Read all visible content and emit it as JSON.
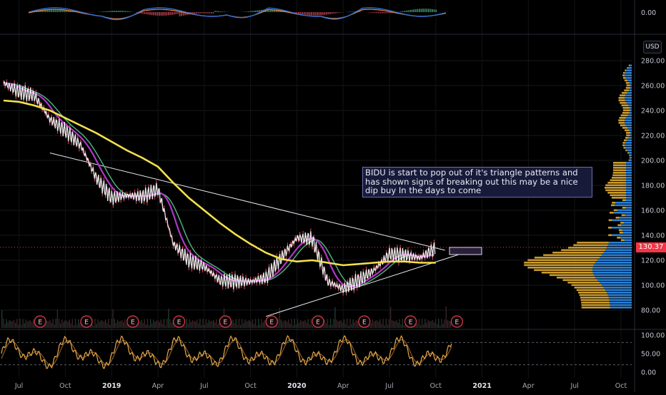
{
  "chart": {
    "currency": "USD",
    "last_price": "130.37",
    "annotation": "BIDU is start to pop out of it's triangle patterns and has shown signs of breaking out this may be a nice dip buy In the days to come",
    "earnings_marker": "E",
    "colors": {
      "background": "#000000",
      "sma_long": "#f4e04d",
      "ma_purple": "#b136c8",
      "ma_green": "#4caf7a",
      "ma_white": "#ffffff",
      "price_red": "#e84a5f",
      "volume_profile_blue": "#2a7fd4",
      "volume_profile_gold": "#c99a2e",
      "stoch_k": "#e8a84a",
      "stoch_d": "#8a5a2a",
      "macd_blue": "#2f6fd6",
      "macd_orange": "#f0883e",
      "price_line": "#f23645",
      "earnings_circle": "#e53a4a"
    }
  },
  "chart_data": [
    {
      "type": "line",
      "title": "",
      "y_axis_ticks": [
        "280.00",
        "260.00",
        "240.00",
        "220.00",
        "200.00",
        "180.00",
        "160.00",
        "140.00",
        "120.00",
        "100.00",
        "80.00"
      ],
      "x_axis_ticks": [
        "Jul",
        "Oct",
        "2019",
        "Apr",
        "Jul",
        "Oct",
        "2020",
        "Apr",
        "Jul",
        "Oct",
        "2021",
        "Apr",
        "Jul",
        "Oct"
      ],
      "x": [
        "2018-06",
        "2018-07",
        "2018-08",
        "2018-09",
        "2018-10",
        "2018-11",
        "2018-12",
        "2019-01",
        "2019-02",
        "2019-03",
        "2019-04",
        "2019-05",
        "2019-06",
        "2019-07",
        "2019-08",
        "2019-09",
        "2019-10",
        "2019-11",
        "2019-12",
        "2020-01",
        "2020-02",
        "2020-03",
        "2020-04",
        "2020-05",
        "2020-06",
        "2020-07",
        "2020-08",
        "2020-09",
        "2020-10"
      ],
      "series": [
        {
          "values": [
            262,
            255,
            252,
            233,
            224,
            212,
            186,
            170,
            172,
            171,
            177,
            133,
            120,
            115,
            104,
            103,
            103,
            106,
            122,
            138,
            137,
            103,
            97,
            104,
            112,
            125,
            124,
            122,
            130
          ]
        },
        {
          "values": [
            248,
            247,
            244,
            240,
            234,
            228,
            222,
            215,
            208,
            202,
            195,
            182,
            170,
            160,
            150,
            141,
            133,
            126,
            121,
            119,
            120,
            118,
            116,
            117,
            118,
            119,
            119,
            118,
            118
          ]
        }
      ],
      "trendlines": [
        {
          "from": [
            "2018-09",
            206
          ],
          "to": [
            "2020-10",
            128
          ]
        },
        {
          "from": [
            "2019-11",
            75
          ],
          "to": [
            "2020-11",
            125
          ]
        }
      ],
      "earnings_dates": [
        "2018-08",
        "2018-11",
        "2019-02",
        "2019-05",
        "2019-08",
        "2019-11",
        "2020-02",
        "2020-05",
        "2020-08",
        "2020-11"
      ],
      "ylim": [
        80,
        285
      ]
    },
    {
      "type": "line",
      "title": "",
      "y_axis_ticks": [
        "0.00"
      ]
    },
    {
      "type": "line",
      "title": "",
      "y_axis_ticks": [
        "100.00",
        "50.00",
        "0.00"
      ],
      "ylim": [
        0,
        100
      ],
      "levels": [
        80,
        20
      ]
    }
  ]
}
